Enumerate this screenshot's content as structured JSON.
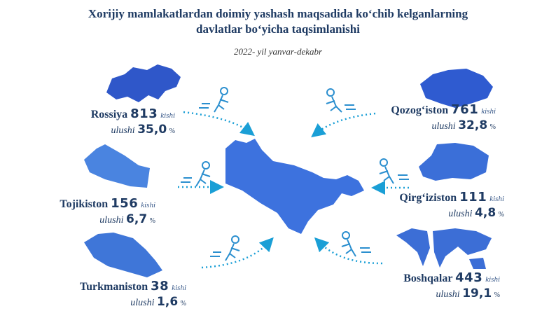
{
  "header": {
    "title": [
      "Xorijiy mamlakatlardan doimiy yashash maqsadida ko‘chib kelganlarning",
      "davlatlar bo‘yicha taqsimlanishi"
    ],
    "subtitle": "2022- yil yanvar-dekabr"
  },
  "countries": [
    {
      "name": "Rossiya",
      "count": 813,
      "count_unit": "kishi",
      "share_label": "ulushi",
      "share": "35,0",
      "share_unit": "%"
    },
    {
      "name": "Tojikiston",
      "count": 156,
      "count_unit": "kishi",
      "share_label": "ulushi",
      "share": "6,7",
      "share_unit": "%"
    },
    {
      "name": "Turkmaniston",
      "count": 38,
      "count_unit": "kishi",
      "share_label": "ulushi",
      "share": "1,6",
      "share_unit": "%"
    },
    {
      "name": "Qozog‘iston",
      "count": 761,
      "count_unit": "kishi",
      "share_label": "ulushi",
      "share": "32,8",
      "share_unit": "%"
    },
    {
      "name": "Qirg‘iziston",
      "count": 111,
      "count_unit": "kishi",
      "share_label": "ulushi",
      "share": "4,8",
      "share_unit": "%"
    },
    {
      "name": "Boshqalar",
      "count": 443,
      "count_unit": "kishi",
      "share_label": "ulushi",
      "share": "19,1",
      "share_unit": "%"
    }
  ]
}
